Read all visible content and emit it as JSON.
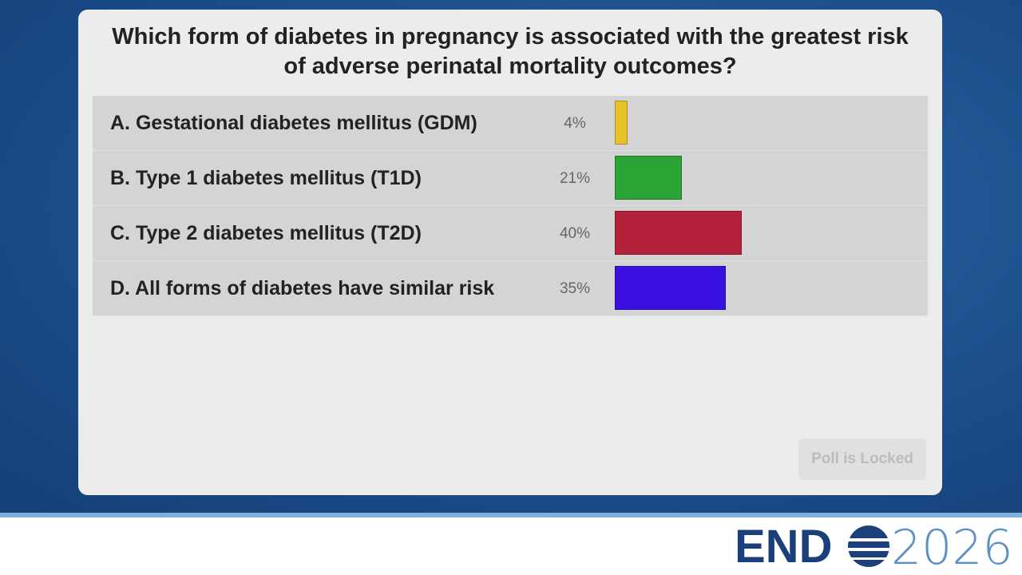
{
  "question": "Which form of diabetes in pregnancy is associated with the greatest risk of adverse perinatal mortality outcomes?",
  "options": [
    {
      "label": "A. Gestational diabetes mellitus (GDM)",
      "value": 4,
      "value_label": "4%",
      "color": "#e8c02a"
    },
    {
      "label": "B. Type 1 diabetes mellitus (T1D)",
      "value": 21,
      "value_label": "21%",
      "color": "#2aa535"
    },
    {
      "label": "C. Type 2 diabetes mellitus (T2D)",
      "value": 40,
      "value_label": "40%",
      "color": "#b3213a"
    },
    {
      "label": "D. All forms of diabetes have similar risk",
      "value": 35,
      "value_label": "35%",
      "color": "#3a10e0"
    }
  ],
  "button": "Poll is Locked",
  "logo": {
    "left": "END",
    "right": "2026"
  }
}
